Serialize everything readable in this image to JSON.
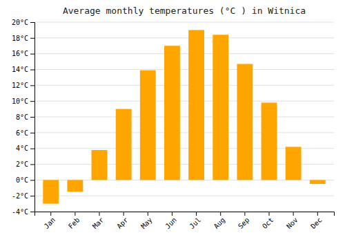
{
  "chart_data": {
    "type": "bar",
    "title": "Average monthly temperatures (°C ) in Witnica",
    "categories": [
      "Jan",
      "Feb",
      "Mar",
      "Apr",
      "May",
      "Jun",
      "Jul",
      "Aug",
      "Sep",
      "Oct",
      "Nov",
      "Dec"
    ],
    "values": [
      -3.0,
      -1.5,
      3.8,
      9.0,
      13.9,
      17.0,
      19.0,
      18.4,
      14.7,
      9.8,
      4.2,
      -0.5
    ],
    "color": "#FFA500",
    "ylim": [
      -4,
      20
    ],
    "yticks": [
      {
        "value": -4,
        "label": "-4°C"
      },
      {
        "value": -2,
        "label": "-2°C"
      },
      {
        "value": 0,
        "label": "0°C"
      },
      {
        "value": 2,
        "label": "2°C"
      },
      {
        "value": 4,
        "label": "4°C"
      },
      {
        "value": 6,
        "label": "6°C"
      },
      {
        "value": 8,
        "label": "8°C"
      },
      {
        "value": 10,
        "label": "10°C"
      },
      {
        "value": 12,
        "label": "12°C"
      },
      {
        "value": 14,
        "label": "14°C"
      },
      {
        "value": 16,
        "label": "16°C"
      },
      {
        "value": 18,
        "label": "18°C"
      },
      {
        "value": 20,
        "label": "20°C"
      }
    ],
    "grid": true
  }
}
